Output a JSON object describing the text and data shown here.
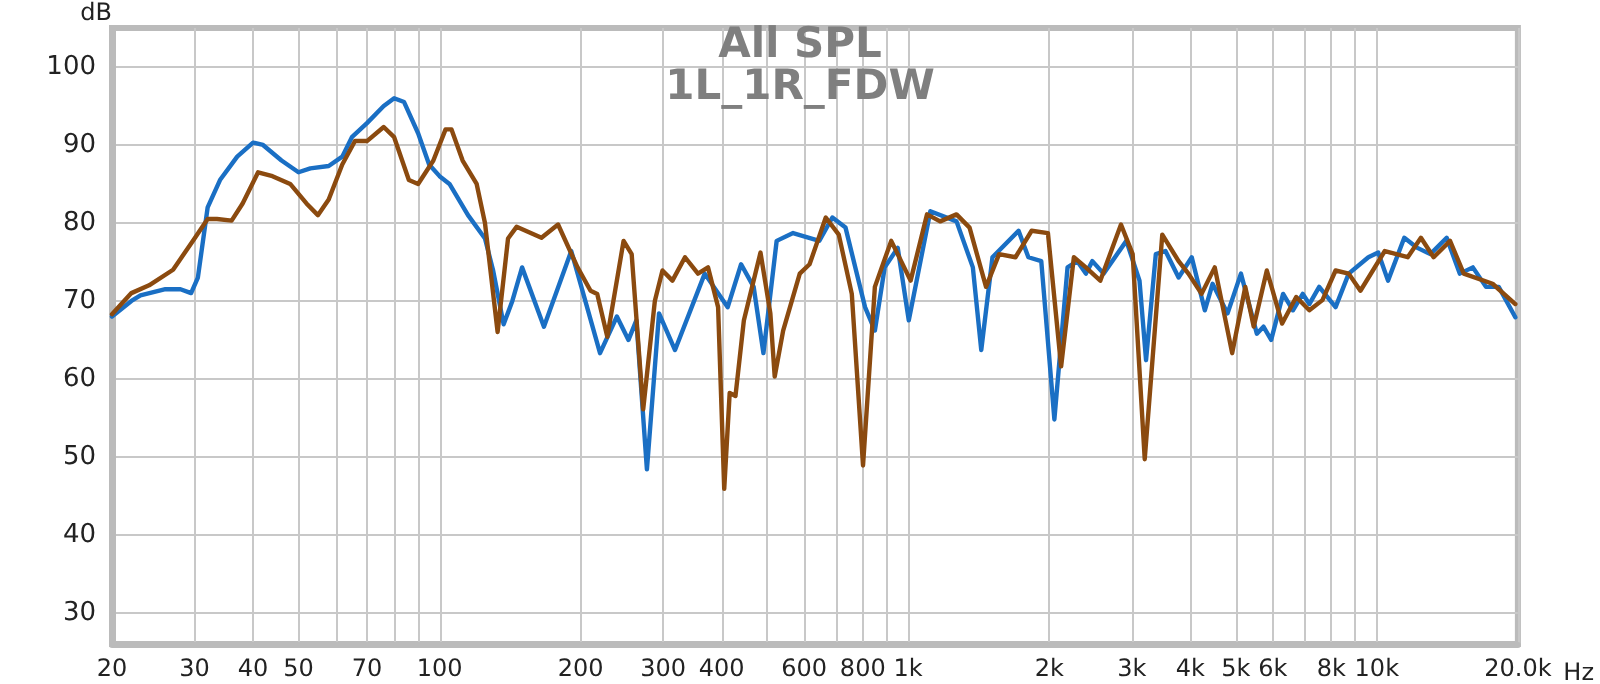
{
  "chart_data": {
    "type": "line",
    "title": "All SPL",
    "subtitle": "1L_1R_FDW",
    "ylabel": "dB",
    "xlim": [
      20,
      20000
    ],
    "ylim": [
      26,
      105
    ],
    "xlabel": "Hz",
    "log": "x",
    "grid": true,
    "marker": "none",
    "line_style": "solid",
    "xticks": [
      20,
      30,
      40,
      50,
      {
        "value": 60,
        "label": null
      },
      70,
      {
        "value": 80,
        "label": null
      },
      {
        "value": 90,
        "label": null
      },
      100,
      200,
      300,
      400,
      {
        "value": 500,
        "label": null
      },
      600,
      {
        "value": 700,
        "label": null
      },
      800,
      {
        "value": 900,
        "label": null
      },
      {
        "value": 1000,
        "label": "1k"
      },
      {
        "value": 2000,
        "label": "2k"
      },
      {
        "value": 3000,
        "label": "3k"
      },
      {
        "value": 4000,
        "label": "4k"
      },
      {
        "value": 5000,
        "label": "5k"
      },
      {
        "value": 6000,
        "label": "6k"
      },
      {
        "value": 7000,
        "label": null
      },
      {
        "value": 8000,
        "label": "8k"
      },
      {
        "value": 9000,
        "label": null
      },
      {
        "value": 10000,
        "label": "10k"
      },
      {
        "value": 20000,
        "label": "20.0k"
      }
    ],
    "yticks": [
      30,
      40,
      50,
      60,
      70,
      80,
      90,
      100
    ],
    "series": [
      {
        "color": "#1a6fc4",
        "x": [
          20,
          22,
          23,
          26,
          28,
          29.5,
          30.5,
          32,
          34,
          37,
          40,
          42,
          46,
          50,
          53,
          58,
          62,
          65,
          70,
          76,
          80,
          84,
          90,
          95,
          100,
          105,
          115,
          125,
          130,
          137,
          143,
          150,
          167,
          191,
          220,
          239,
          253,
          263,
          277,
          294,
          318,
          368,
          412,
          440,
          468,
          491,
          524,
          568,
          646,
          689,
          735,
          809,
          849,
          891,
          950,
          1003,
          1115,
          1268,
          1374,
          1432,
          1513,
          1720,
          1805,
          1923,
          2051,
          2188,
          2296,
          2394,
          2472,
          2612,
          2921,
          3116,
          3218,
          3376,
          3540,
          3776,
          4028,
          4295,
          4462,
          4803,
          5129,
          5546,
          5730,
          5951,
          6310,
          6622,
          6950,
          7178,
          7534,
          8166,
          8710,
          9594,
          10069,
          10566,
          11445,
          12208,
          13010,
          14095,
          15030,
          16030,
          17100,
          18200,
          19750
        ],
        "values": [
          68,
          70,
          70.7,
          71.5,
          71.5,
          71,
          73,
          82,
          85.5,
          88.5,
          90.3,
          90,
          88,
          86.5,
          87,
          87.3,
          88.5,
          91,
          92.8,
          95,
          96,
          95.5,
          91.5,
          87.5,
          86,
          85,
          81,
          78,
          74,
          67,
          70,
          74.3,
          66.7,
          76.4,
          63.3,
          68,
          65,
          67.5,
          48.4,
          68.4,
          63.7,
          73.5,
          69.2,
          74.7,
          71.8,
          63.3,
          77.7,
          78.7,
          77.7,
          80.7,
          79.4,
          69.2,
          66.2,
          74.3,
          76.8,
          67.5,
          81.5,
          80.2,
          74.3,
          63.7,
          75.6,
          79,
          75.6,
          75.1,
          54.8,
          74.3,
          75.1,
          73.5,
          75.1,
          73.5,
          77.7,
          72.6,
          62.4,
          76,
          76.4,
          73,
          75.6,
          68.8,
          72.2,
          68.4,
          73.5,
          65.8,
          66.7,
          65,
          70.9,
          68.8,
          70.9,
          69.6,
          71.8,
          69.2,
          73.5,
          75.6,
          76.2,
          72.6,
          78.1,
          76.8,
          76,
          78.1,
          73.5,
          74.3,
          71.8,
          71.8,
          67.9
        ]
      },
      {
        "color": "#8b4a0f",
        "x": [
          20,
          22,
          24,
          27,
          30,
          32,
          33.5,
          36,
          38,
          41,
          44,
          48,
          52,
          55,
          58,
          62,
          66,
          70,
          76,
          80,
          86,
          90,
          97,
          103,
          106,
          112,
          120,
          125,
          133,
          140,
          146,
          165,
          179,
          197,
          210,
          217,
          228,
          247,
          257,
          272,
          288,
          299,
          314,
          334,
          356,
          374,
          393,
          405,
          416,
          428,
          446,
          484,
          508,
          519,
          541,
          587,
          616,
          667,
          711,
          758,
          801,
          849,
          920,
          1012,
          1097,
          1170,
          1268,
          1352,
          1466,
          1563,
          1694,
          1834,
          1987,
          2120,
          2257,
          2394,
          2570,
          2845,
          3013,
          3197,
          3485,
          3776,
          3963,
          4227,
          4510,
          4913,
          5240,
          5461,
          5825,
          6280,
          6730,
          7178,
          7656,
          8166,
          8710,
          9226,
          10400,
          11640,
          12420,
          13220,
          14330,
          15330,
          17660,
          19750
        ],
        "values": [
          68.3,
          71,
          72,
          74,
          78,
          80.5,
          80.5,
          80.3,
          82.5,
          86.5,
          86,
          85,
          82.5,
          81,
          83,
          87.5,
          90.5,
          90.5,
          92.3,
          91,
          85.5,
          85,
          88,
          92,
          92,
          88,
          85,
          80,
          66,
          78,
          79.5,
          78.1,
          79.8,
          74.3,
          71.3,
          70.9,
          65.4,
          77.7,
          76,
          56.1,
          70,
          73.9,
          72.6,
          75.6,
          73.5,
          74.3,
          69.2,
          45.9,
          58.2,
          57.8,
          67.5,
          76.2,
          68.4,
          60.3,
          66.2,
          73.5,
          74.7,
          80.7,
          78.5,
          70.9,
          48.9,
          71.8,
          77.7,
          72.6,
          81.1,
          80.2,
          81.1,
          79.4,
          71.8,
          76,
          75.6,
          79,
          78.7,
          61.6,
          75.6,
          74.3,
          72.6,
          79.8,
          76,
          49.7,
          78.5,
          75.1,
          73.5,
          70.9,
          74.3,
          63.3,
          71.8,
          66.7,
          73.9,
          67.1,
          70.5,
          68.8,
          70.1,
          73.9,
          73.5,
          71.3,
          76.4,
          75.6,
          78.1,
          75.6,
          77.7,
          73.5,
          72.2,
          69.6
        ]
      }
    ]
  }
}
